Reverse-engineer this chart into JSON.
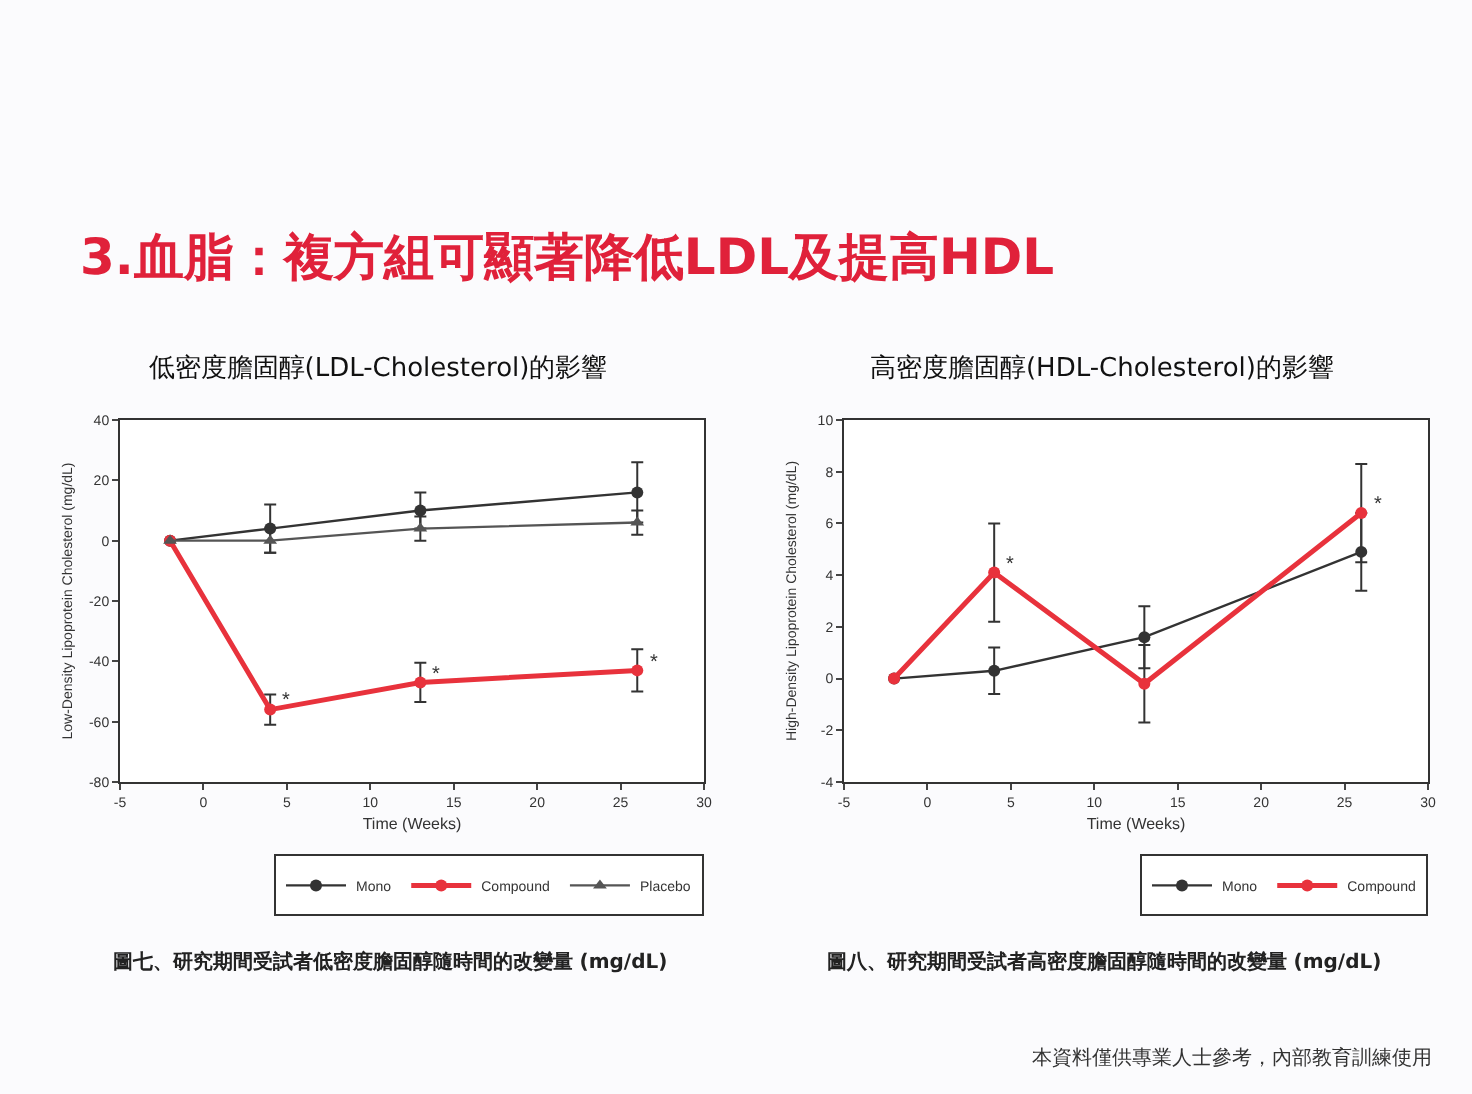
{
  "chart_data": [
    {
      "type": "line",
      "title": "低密度膽固醇(LDL-Cholesterol)的影響",
      "xlabel": "Time (Weeks)",
      "ylabel": "Low-Density Lipoprotein Cholesterol (mg/dL)",
      "x": [
        -2,
        4,
        13,
        26
      ],
      "xlim": [
        -5,
        30
      ],
      "xticks": [
        -5,
        0,
        5,
        10,
        15,
        20,
        25,
        30
      ],
      "ylim": [
        -80,
        40
      ],
      "yticks": [
        -80,
        -60,
        -40,
        -20,
        0,
        20,
        40
      ],
      "grid": false,
      "legend": "bottom right",
      "series": [
        {
          "name": "Mono",
          "color": "#333333",
          "marker": "circle",
          "values": [
            0,
            4,
            10,
            16
          ],
          "errors": [
            null,
            8,
            6,
            10
          ]
        },
        {
          "name": "Compound",
          "color": "#e8323c",
          "marker": "circle",
          "values": [
            0,
            -56,
            -47,
            -43
          ],
          "errors": [
            null,
            5,
            6.5,
            7
          ]
        },
        {
          "name": "Placebo",
          "color": "#555555",
          "marker": "triangle",
          "values": [
            0,
            0,
            4,
            6
          ],
          "errors": [
            null,
            4,
            4,
            4
          ]
        }
      ],
      "annotations": [
        "3.血脂：複方組可顯著降低LDL及提高HDL",
        "圖七、研究期間受試者低密度膽固醇隨時間的改變量 (mg/dL)",
        {
          "text": "*",
          "x": 4,
          "y": -56
        },
        {
          "text": "*",
          "x": 13,
          "y": -47
        },
        {
          "text": "*",
          "x": 26,
          "y": -43
        }
      ]
    },
    {
      "type": "line",
      "title": "高密度膽固醇(HDL-Cholesterol)的影響",
      "xlabel": "Time (Weeks)",
      "ylabel": "High-Density Lipoprotein Cholesterol (mg/dL)",
      "x": [
        -2,
        4,
        13,
        26
      ],
      "xlim": [
        -5,
        30
      ],
      "xticks": [
        -5,
        0,
        5,
        10,
        15,
        20,
        25,
        30
      ],
      "ylim": [
        -4,
        10
      ],
      "yticks": [
        -4,
        -2,
        0,
        2,
        4,
        6,
        8,
        10
      ],
      "grid": false,
      "legend": "bottom right",
      "series": [
        {
          "name": "Mono",
          "color": "#333333",
          "marker": "circle",
          "values": [
            0,
            0.3,
            1.6,
            4.9
          ],
          "errors": [
            null,
            0.9,
            1.2,
            1.5
          ]
        },
        {
          "name": "Compound",
          "color": "#e8323c",
          "marker": "circle",
          "values": [
            0,
            4.1,
            -0.2,
            6.4
          ],
          "errors": [
            null,
            1.9,
            1.5,
            1.9
          ]
        }
      ],
      "annotations": [
        "圖八、研究期間受試者高密度膽固醇隨時間的改變量 (mg/dL)",
        "本資料僅供專業人士參考，內部教育訓練使用",
        {
          "text": "*",
          "x": 4,
          "y": 4.1
        },
        {
          "text": "*",
          "x": 26,
          "y": 6.4
        }
      ]
    }
  ]
}
